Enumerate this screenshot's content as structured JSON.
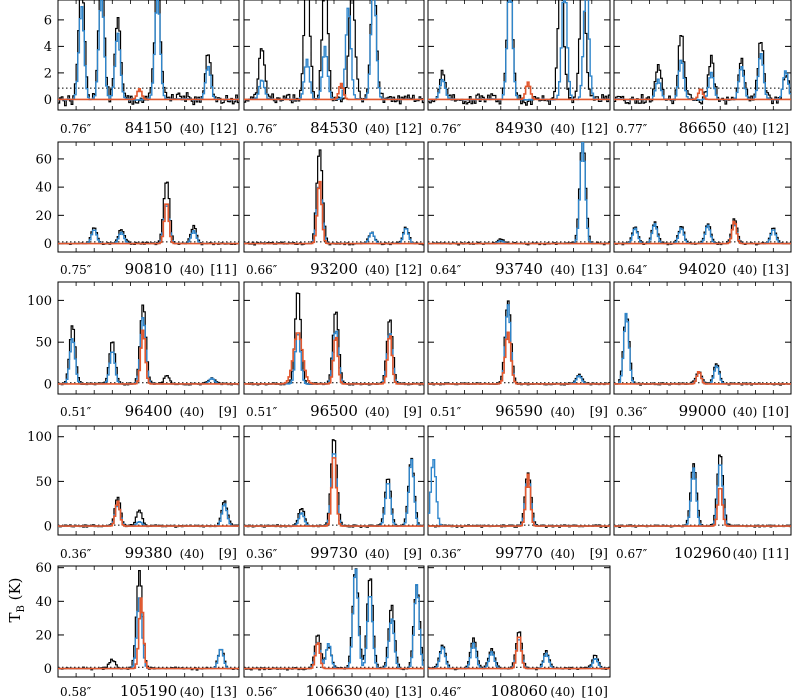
{
  "chart_data": {
    "type": "line",
    "ylabel": "T",
    "ylabel_sub": "B",
    "ylabel_unit": " (K)",
    "colors": {
      "observed": "#000000",
      "model_total": "#2f86cc",
      "model_species": "#e2582e",
      "threshold": "#000000"
    },
    "rows": [
      {
        "yticks": [
          0,
          2,
          4,
          6
        ],
        "ylim": [
          -0.8,
          7.5
        ],
        "threshold": 0.85
      },
      {
        "yticks": [
          0,
          20,
          40,
          60
        ],
        "ylim": [
          -6,
          72
        ],
        "threshold": 1.2
      },
      {
        "yticks": [
          0,
          50,
          100
        ],
        "ylim": [
          -12,
          122
        ],
        "threshold": 1.5
      },
      {
        "yticks": [
          0,
          50,
          100
        ],
        "ylim": [
          -10,
          112
        ],
        "threshold": 1.0
      },
      {
        "yticks": [
          0,
          20,
          40,
          60
        ],
        "ylim": [
          -5,
          61
        ],
        "threshold": 0.8
      }
    ],
    "panels": [
      {
        "row": 0,
        "col": 0,
        "res": "0.76″",
        "freq": "84150",
        "width": "(40)",
        "n": "[12]",
        "obs": [
          [
            0.13,
            9
          ],
          [
            0.24,
            9
          ],
          [
            0.33,
            6
          ],
          [
            0.55,
            9
          ],
          [
            0.83,
            3.5
          ]
        ],
        "tot": [
          [
            0.13,
            7
          ],
          [
            0.24,
            8
          ],
          [
            0.33,
            5
          ],
          [
            0.55,
            8
          ],
          [
            0.83,
            2.5
          ]
        ],
        "sp": [
          [
            0.45,
            0.8,
            0.012
          ]
        ],
        "noise": 0.35,
        "clip": true
      },
      {
        "row": 0,
        "col": 1,
        "res": "0.76″",
        "freq": "84530",
        "width": "(40)",
        "n": "[12]",
        "obs": [
          [
            0.1,
            4
          ],
          [
            0.35,
            9
          ],
          [
            0.45,
            9
          ],
          [
            0.6,
            9
          ],
          [
            0.72,
            9
          ]
        ],
        "tot": [
          [
            0.1,
            1.5
          ],
          [
            0.35,
            3
          ],
          [
            0.45,
            4
          ],
          [
            0.58,
            7
          ],
          [
            0.72,
            9
          ]
        ],
        "sp": [
          [
            0.54,
            1.2,
            0.012
          ]
        ],
        "noise": 0.3,
        "clip": true
      },
      {
        "row": 0,
        "col": 2,
        "res": "0.76″",
        "freq": "84930",
        "width": "(40)",
        "n": "[12]",
        "obs": [
          [
            0.08,
            2
          ],
          [
            0.45,
            9
          ],
          [
            0.73,
            9
          ],
          [
            0.85,
            9
          ]
        ],
        "tot": [
          [
            0.08,
            1.5
          ],
          [
            0.45,
            9
          ],
          [
            0.75,
            9
          ],
          [
            0.87,
            9
          ]
        ],
        "sp": [
          [
            0.55,
            1.3,
            0.012
          ]
        ],
        "noise": 0.3,
        "clip": true
      },
      {
        "row": 0,
        "col": 3,
        "res": "0.77″",
        "freq": "86650",
        "width": "(40)",
        "n": "[12]",
        "obs": [
          [
            0.25,
            2.5
          ],
          [
            0.38,
            5
          ],
          [
            0.55,
            3
          ],
          [
            0.72,
            3
          ],
          [
            0.83,
            4.5
          ],
          [
            0.97,
            2
          ]
        ],
        "tot": [
          [
            0.25,
            1.5
          ],
          [
            0.38,
            3
          ],
          [
            0.55,
            2
          ],
          [
            0.72,
            2.5
          ],
          [
            0.83,
            3.5
          ],
          [
            0.97,
            2.2
          ]
        ],
        "sp": [
          [
            0.49,
            0.8,
            0.012
          ]
        ],
        "noise": 0.3,
        "clip": true
      },
      {
        "row": 1,
        "col": 0,
        "res": "0.75″",
        "freq": "90810",
        "width": "(40)",
        "n": "[11]",
        "obs": [
          [
            0.2,
            12
          ],
          [
            0.35,
            10
          ],
          [
            0.6,
            45
          ],
          [
            0.75,
            12
          ]
        ],
        "tot": [
          [
            0.2,
            10
          ],
          [
            0.35,
            8
          ],
          [
            0.6,
            28
          ],
          [
            0.75,
            9
          ]
        ],
        "sp": [
          [
            0.6,
            30,
            0.012
          ]
        ],
        "noise": 0.7,
        "clip": false
      },
      {
        "row": 1,
        "col": 1,
        "res": "0.66″",
        "freq": "93200",
        "width": "(40)",
        "n": "[12]",
        "obs": [
          [
            0.42,
            67
          ],
          [
            0.71,
            8
          ],
          [
            0.9,
            12
          ]
        ],
        "tot": [
          [
            0.42,
            44
          ],
          [
            0.71,
            8
          ],
          [
            0.9,
            11
          ]
        ],
        "sp": [
          [
            0.42,
            45,
            0.012
          ]
        ],
        "noise": 0.7,
        "clip": false
      },
      {
        "row": 1,
        "col": 2,
        "res": "0.64″",
        "freq": "93740",
        "width": "(40)",
        "n": "[13]",
        "obs": [
          [
            0.85,
            75
          ],
          [
            0.4,
            3
          ]
        ],
        "tot": [
          [
            0.85,
            72
          ],
          [
            0.4,
            2
          ]
        ],
        "sp": [],
        "noise": 0.7,
        "clip": true
      },
      {
        "row": 1,
        "col": 3,
        "res": "0.64″",
        "freq": "94020",
        "width": "(40)",
        "n": "[13]",
        "obs": [
          [
            0.12,
            12
          ],
          [
            0.23,
            15
          ],
          [
            0.38,
            12
          ],
          [
            0.53,
            14
          ],
          [
            0.68,
            17
          ],
          [
            0.9,
            11
          ]
        ],
        "tot": [
          [
            0.12,
            11
          ],
          [
            0.23,
            14
          ],
          [
            0.38,
            11
          ],
          [
            0.53,
            13
          ],
          [
            0.68,
            14
          ],
          [
            0.9,
            10
          ]
        ],
        "sp": [
          [
            0.68,
            16,
            0.012
          ]
        ],
        "noise": 0.6,
        "clip": false
      },
      {
        "row": 2,
        "col": 0,
        "res": "0.51″",
        "freq": "96400",
        "width": "(40)",
        "n": "[9]",
        "obs": [
          [
            0.08,
            70
          ],
          [
            0.3,
            52
          ],
          [
            0.47,
            95
          ],
          [
            0.6,
            10
          ],
          [
            0.85,
            8
          ]
        ],
        "tot": [
          [
            0.08,
            55
          ],
          [
            0.3,
            40
          ],
          [
            0.47,
            80
          ],
          [
            0.85,
            7
          ]
        ],
        "sp": [
          [
            0.47,
            65,
            0.012
          ]
        ],
        "noise": 1.0,
        "clip": false
      },
      {
        "row": 2,
        "col": 1,
        "res": "0.51″",
        "freq": "96500",
        "width": "(40)",
        "n": "[9]",
        "obs": [
          [
            0.3,
            112
          ],
          [
            0.51,
            88
          ],
          [
            0.81,
            78
          ]
        ],
        "tot": [
          [
            0.3,
            62
          ],
          [
            0.51,
            65
          ],
          [
            0.81,
            62
          ]
        ],
        "sp": [
          [
            0.3,
            62,
            0.025
          ],
          [
            0.51,
            58,
            0.012
          ],
          [
            0.81,
            60,
            0.012
          ]
        ],
        "noise": 1.0,
        "clip": false
      },
      {
        "row": 2,
        "col": 2,
        "res": "0.51″",
        "freq": "96590",
        "width": "(40)",
        "n": "[9]",
        "obs": [
          [
            0.44,
            100
          ],
          [
            0.83,
            12
          ]
        ],
        "tot": [
          [
            0.44,
            95
          ],
          [
            0.83,
            10
          ]
        ],
        "sp": [
          [
            0.44,
            62,
            0.015
          ]
        ],
        "noise": 1.0,
        "clip": false
      },
      {
        "row": 2,
        "col": 3,
        "res": "0.36″",
        "freq": "99000",
        "width": "(40)",
        "n": "[10]",
        "obs": [
          [
            0.07,
            85
          ],
          [
            0.48,
            15
          ],
          [
            0.58,
            25
          ]
        ],
        "tot": [
          [
            0.07,
            85
          ],
          [
            0.48,
            14
          ],
          [
            0.58,
            22
          ]
        ],
        "sp": [
          [
            0.48,
            15,
            0.012
          ]
        ],
        "noise": 1.0,
        "clip": false
      },
      {
        "row": 3,
        "col": 0,
        "res": "0.36″",
        "freq": "99380",
        "width": "(40)",
        "n": "[9]",
        "obs": [
          [
            0.33,
            32
          ],
          [
            0.45,
            18
          ],
          [
            0.92,
            28
          ]
        ],
        "tot": [
          [
            0.33,
            25
          ],
          [
            0.45,
            5
          ],
          [
            0.92,
            25
          ]
        ],
        "sp": [
          [
            0.33,
            28,
            0.012
          ]
        ],
        "noise": 1.0,
        "clip": false
      },
      {
        "row": 3,
        "col": 1,
        "res": "0.36″",
        "freq": "99730",
        "width": "(40)",
        "n": "[9]",
        "obs": [
          [
            0.32,
            20
          ],
          [
            0.5,
            100
          ],
          [
            0.8,
            55
          ],
          [
            0.93,
            75
          ]
        ],
        "tot": [
          [
            0.32,
            15
          ],
          [
            0.5,
            85
          ],
          [
            0.8,
            50
          ],
          [
            0.93,
            75
          ]
        ],
        "sp": [
          [
            0.5,
            82,
            0.012
          ]
        ],
        "noise": 1.0,
        "clip": true
      },
      {
        "row": 3,
        "col": 2,
        "res": "0.36″",
        "freq": "99770",
        "width": "(40)",
        "n": "[9]",
        "obs": [
          [
            0.55,
            60
          ]
        ],
        "tot": [
          [
            0.55,
            58
          ],
          [
            0.03,
            75
          ]
        ],
        "sp": [
          [
            0.55,
            58,
            0.012
          ]
        ],
        "noise": 1.0,
        "clip": false
      },
      {
        "row": 3,
        "col": 3,
        "res": "0.67″",
        "freq": "102960",
        "width": "(40)",
        "n": "[11]",
        "obs": [
          [
            0.45,
            70
          ],
          [
            0.6,
            82
          ]
        ],
        "tot": [
          [
            0.45,
            65
          ],
          [
            0.6,
            72
          ]
        ],
        "sp": [
          [
            0.6,
            45,
            0.012
          ]
        ],
        "noise": 1.0,
        "clip": false
      },
      {
        "row": 4,
        "col": 0,
        "res": "0.58″",
        "freq": "105190",
        "width": "(40)",
        "n": "[13]",
        "obs": [
          [
            0.45,
            58
          ],
          [
            0.3,
            5
          ],
          [
            0.9,
            12
          ]
        ],
        "tot": [
          [
            0.45,
            42
          ],
          [
            0.9,
            12
          ]
        ],
        "sp": [
          [
            0.46,
            42,
            0.012
          ]
        ],
        "noise": 0.6,
        "clip": false
      },
      {
        "row": 4,
        "col": 1,
        "res": "0.56″",
        "freq": "106630",
        "width": "(40)",
        "n": "[13]",
        "obs": [
          [
            0.41,
            20
          ],
          [
            0.47,
            13
          ],
          [
            0.62,
            60
          ],
          [
            0.7,
            55
          ],
          [
            0.82,
            38
          ],
          [
            0.96,
            50
          ]
        ],
        "tot": [
          [
            0.41,
            16
          ],
          [
            0.47,
            15
          ],
          [
            0.62,
            60
          ],
          [
            0.7,
            45
          ],
          [
            0.82,
            30
          ],
          [
            0.96,
            50
          ]
        ],
        "sp": [
          [
            0.41,
            16,
            0.012
          ]
        ],
        "noise": 0.6,
        "clip": true
      },
      {
        "row": 4,
        "col": 2,
        "res": "0.46″",
        "freq": "108060",
        "width": "(40)",
        "n": "[10]",
        "obs": [
          [
            0.08,
            14
          ],
          [
            0.25,
            18
          ],
          [
            0.35,
            12
          ],
          [
            0.5,
            22
          ],
          [
            0.65,
            10
          ],
          [
            0.92,
            8
          ]
        ],
        "tot": [
          [
            0.08,
            13
          ],
          [
            0.25,
            15
          ],
          [
            0.35,
            10
          ],
          [
            0.5,
            18
          ],
          [
            0.65,
            9
          ],
          [
            0.92,
            6
          ]
        ],
        "sp": [
          [
            0.5,
            20,
            0.012
          ]
        ],
        "noise": 0.6,
        "clip": false
      }
    ]
  }
}
